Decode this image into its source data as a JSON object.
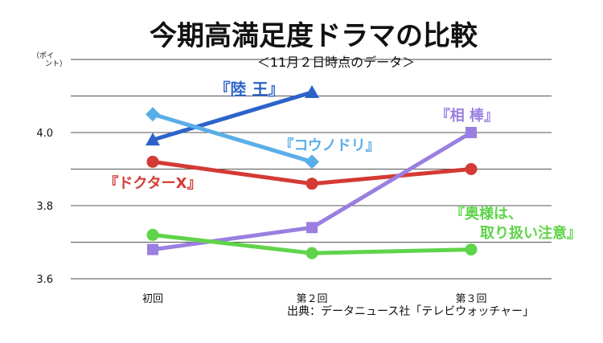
{
  "chart_data": {
    "type": "line",
    "title": "今期高満足度ドラマの比較",
    "subtitle": "＜11月２日時点のデータ＞",
    "ylabel": "（ポイント）",
    "ylabel_lines": [
      "（ポイ",
      "ント）"
    ],
    "source": "出典：データニュース社「テレビウォッチャー」",
    "categories": [
      "初回",
      "第２回",
      "第３回"
    ],
    "ylim": [
      3.6,
      4.2
    ],
    "yticks": [
      3.6,
      3.7,
      3.8,
      3.9,
      4.0,
      4.1
    ],
    "ytick_labels": [
      {
        "value": 3.6,
        "label": "3.6"
      },
      {
        "value": 3.8,
        "label": "3.8"
      },
      {
        "value": 4.0,
        "label": "4.0"
      }
    ],
    "grid": true,
    "legend": "inline labels next to series",
    "series": [
      {
        "name": "『陸 王』",
        "label_lines": [
          "『陸 王』"
        ],
        "values": [
          3.98,
          4.11,
          null
        ],
        "color": "#2b63c9",
        "marker": "triangle"
      },
      {
        "name": "『コウノドリ』",
        "label_lines": [
          "『コウノドリ』"
        ],
        "values": [
          4.05,
          3.92,
          null
        ],
        "color": "#5aaee8",
        "marker": "diamond"
      },
      {
        "name": "『ドクターX』",
        "label_lines": [
          "『ドクターX』"
        ],
        "values": [
          3.92,
          3.86,
          3.9
        ],
        "color": "#d43a35",
        "marker": "circle"
      },
      {
        "name": "『相 棒』",
        "label_lines": [
          "『相 棒』"
        ],
        "values": [
          3.68,
          3.74,
          4.0
        ],
        "color": "#9a7fe0",
        "marker": "square"
      },
      {
        "name": "『奥様は、取り扱い注意』",
        "label_lines": [
          "『奥様は、",
          "取り扱い注意』"
        ],
        "values": [
          3.72,
          3.67,
          3.68
        ],
        "color": "#5fd44a",
        "marker": "circle"
      }
    ]
  }
}
